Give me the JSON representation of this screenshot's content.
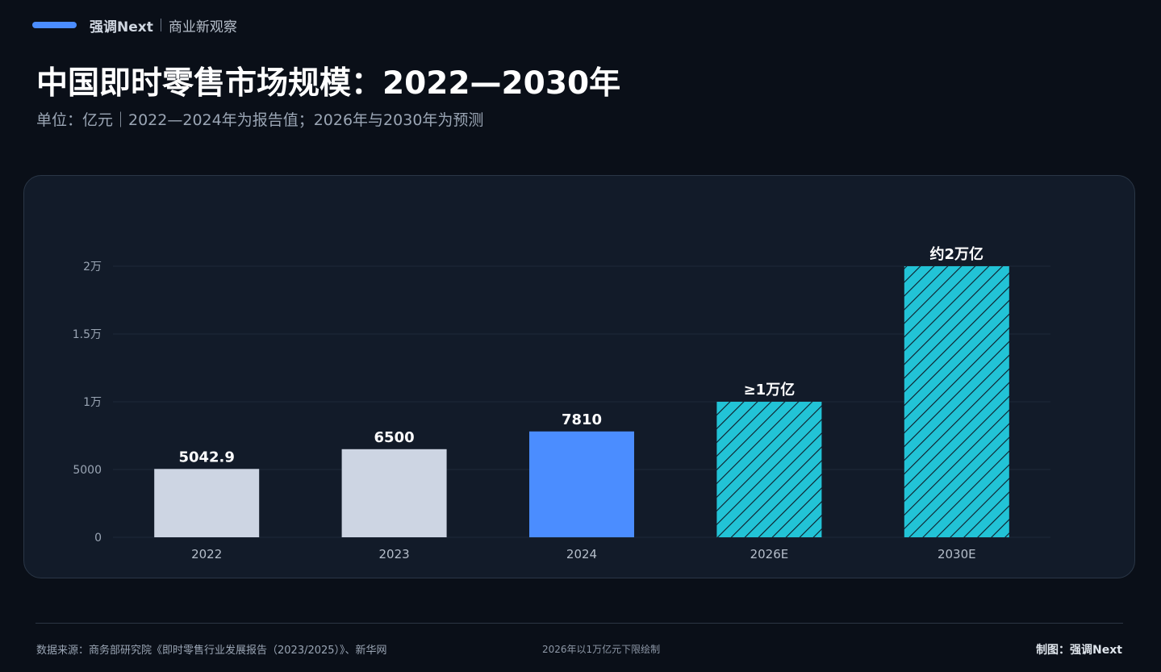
{
  "header": {
    "brand": "强调Next",
    "tagline": "商业新观察"
  },
  "title": "中国即时零售市场规模：2022—2030年",
  "subtitle": "单位：亿元｜2022—2024年为报告值；2026年与2030年为预测",
  "footer": {
    "source": "数据来源：商务部研究院《即时零售行业发展报告（2023/2025）》、新华网",
    "note": "2026年以1万亿元下限绘制",
    "credit": "制图：强调Next"
  },
  "colors": {
    "background": "#0a0f18",
    "card": "#121b29",
    "reported": "#cdd5e3",
    "latest": "#4b8dff",
    "forecast": "#22c3d6",
    "hatch": "#0d1a26",
    "brand_bar": "#4b8dff"
  },
  "chart_data": {
    "type": "bar",
    "categories": [
      "2022",
      "2023",
      "2024",
      "2026E",
      "2030E"
    ],
    "values": [
      5042.9,
      6500,
      7810,
      10000,
      20000
    ],
    "data_labels": [
      "5042.9",
      "6500",
      "7810",
      "≥1万亿",
      "约2万亿"
    ],
    "bar_styles": [
      "reported",
      "reported",
      "latest",
      "forecast",
      "forecast"
    ],
    "ylim": [
      0,
      20000
    ],
    "y_ticks": [
      0,
      5000,
      10000,
      15000,
      20000
    ],
    "y_tick_labels": [
      "0",
      "5000",
      "1万",
      "1.5万",
      "2万"
    ],
    "grid": true,
    "legend": "none"
  }
}
